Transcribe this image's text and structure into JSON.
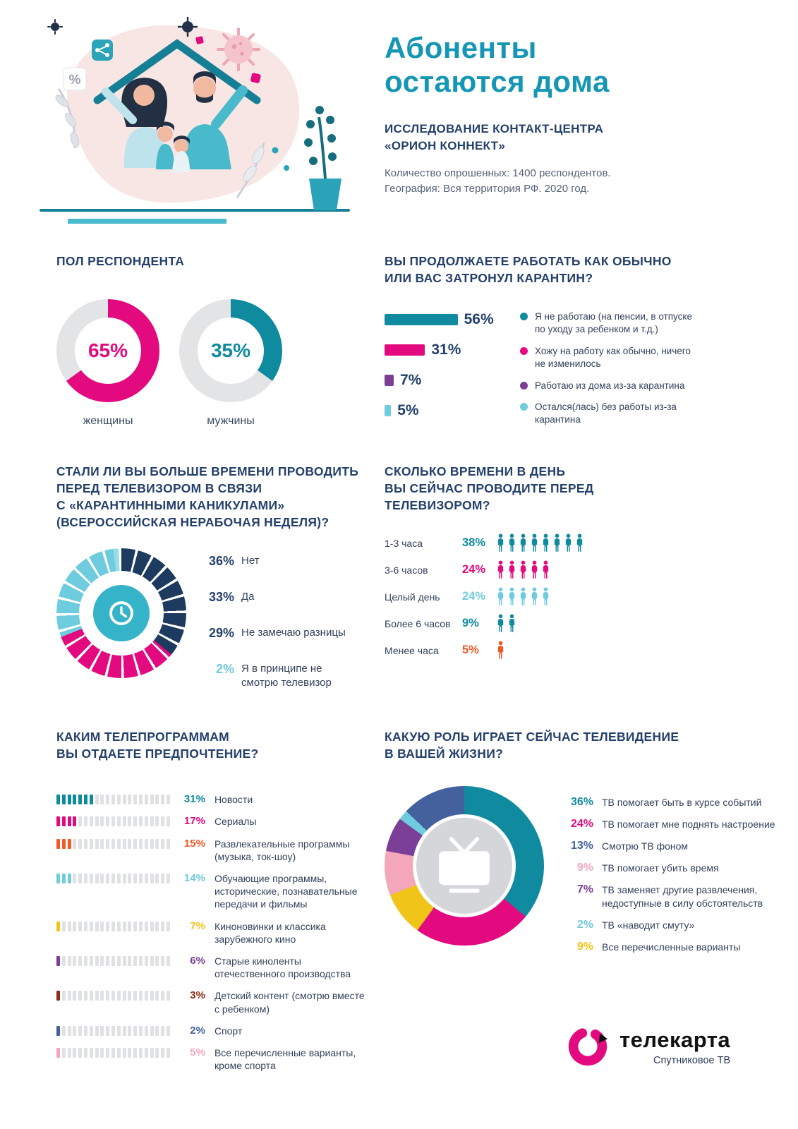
{
  "header": {
    "title_lines": [
      "Абоненты",
      "остаются дома"
    ],
    "subtitle_lines": [
      "ИССЛЕДОВАНИЕ КОНТАКТ-ЦЕНТРА",
      "«ОРИОН КОННЕКТ»"
    ],
    "meta_lines": [
      "Количество опрошенных: 1400  респондентов.",
      "География: Вся территория РФ. 2020 год."
    ]
  },
  "colors": {
    "title_teal": "#1596b4",
    "heading_navy": "#24406b",
    "teal": "#0f8a9e",
    "magenta": "#e20a7e",
    "light_blue": "#6fcbde",
    "purple": "#7b3f98",
    "dark_navy": "#1d3a5f",
    "orange": "#f05a28",
    "yellow": "#f0c419",
    "dark_red": "#8e2c18",
    "slate_blue": "#44619e",
    "light_pink": "#f4a7bb",
    "gray_ring": "#e3e4e6"
  },
  "icons": {
    "clock-icon": "⏰ white clock in teal disc",
    "tv-icon": "📺 white TV in gray disc",
    "person-icon": "🧍 pictogram unit = 5%",
    "family-under-roof-illustration": "family sheltered by roof with virus particles and plant",
    "telekarta-mark": "magenta C-swirl"
  },
  "chart_data": [
    {
      "id": "gender",
      "type": "pie",
      "title": "ПОЛ РЕСПОНДЕНТА",
      "items": [
        {
          "label": "женщины",
          "value": 65,
          "pct": "65%",
          "color": "#e20a7e"
        },
        {
          "label": "мужчины",
          "value": 35,
          "pct": "35%",
          "color": "#0f8a9e"
        }
      ]
    },
    {
      "id": "work_status",
      "type": "bar",
      "title": "ВЫ ПРОДОЛЖАЕТЕ РАБОТАТЬ КАК ОБЫЧНО ИЛИ ВАС ЗАТРОНУЛ КАРАНТИН?",
      "title_lines": [
        "ВЫ ПРОДОЛЖАЕТЕ РАБОТАТЬ КАК ОБЫЧНО",
        "ИЛИ ВАС ЗАТРОНУЛ КАРАНТИН?"
      ],
      "items": [
        {
          "value": 56,
          "pct": "56%",
          "color": "#0f8a9e",
          "label": "Я не работаю (на пенсии, в отпуске по уходу за ребенком и т.д.)"
        },
        {
          "value": 31,
          "pct": "31%",
          "color": "#e20a7e",
          "label": "Хожу на работу как обычно, ничего не изменилось"
        },
        {
          "value": 7,
          "pct": "7%",
          "color": "#7b3f98",
          "label": "Работаю из дома из-за карантина"
        },
        {
          "value": 5,
          "pct": "5%",
          "color": "#6fcbde",
          "label": "Остался(лась) без работы из-за карантина"
        }
      ]
    },
    {
      "id": "tv_more_time",
      "type": "pie",
      "title": "СТАЛИ ЛИ ВЫ БОЛЬШЕ ВРЕМЕНИ ПРОВОДИТЬ ПЕРЕД ТЕЛЕВИЗОРОМ В СВЯЗИ С «КАРАНТИННЫМИ КАНИКУЛАМИ» (ВСЕРОССИЙСКАЯ НЕРАБОЧАЯ НЕДЕЛЯ)?",
      "title_lines": [
        "СТАЛИ ЛИ ВЫ БОЛЬШЕ ВРЕМЕНИ ПРОВОДИТЬ",
        "ПЕРЕД ТЕЛЕВИЗОРОМ В СВЯЗИ",
        "С «КАРАНТИННЫМИ КАНИКУЛАМИ»",
        "(ВСЕРОССИЙСКАЯ НЕРАБОЧАЯ НЕДЕЛЯ)?"
      ],
      "items": [
        {
          "value": 36,
          "pct": "36%",
          "color": "#1d3a5f",
          "pct_color": "#24406b",
          "label": "Нет"
        },
        {
          "value": 33,
          "pct": "33%",
          "color": "#e20a7e",
          "pct_color": "#24406b",
          "label": "Да"
        },
        {
          "value": 29,
          "pct": "29%",
          "color": "#6fcbde",
          "pct_color": "#24406b",
          "label": "Не замечаю разницы"
        },
        {
          "value": 2,
          "pct": "2%",
          "color": "#9adde9",
          "pct_color": "#6fcbde",
          "label": "Я в принципе не смотрю телевизор"
        }
      ]
    },
    {
      "id": "time_per_day",
      "type": "bar",
      "title": "СКОЛЬКО ВРЕМЕНИ В ДЕНЬ ВЫ СЕЙЧАС ПРОВОДИТЕ ПЕРЕД ТЕЛЕВИЗОРОМ?",
      "title_lines": [
        "СКОЛЬКО ВРЕМЕНИ В ДЕНЬ",
        "ВЫ СЕЙЧАС ПРОВОДИТЕ ПЕРЕД",
        "ТЕЛЕВИЗОРОМ?"
      ],
      "items": [
        {
          "label": "1-3 часа",
          "value": 38,
          "pct": "38%",
          "color": "#0f8a9e",
          "icons": 8
        },
        {
          "label": "3-6 часов",
          "value": 24,
          "pct": "24%",
          "color": "#e20a7e",
          "icons": 5
        },
        {
          "label": "Целый день",
          "value": 24,
          "pct": "24%",
          "color": "#6fcbde",
          "icons": 5
        },
        {
          "label": "Более 6 часов",
          "value": 9,
          "pct": "9%",
          "color": "#0f8a9e",
          "icons": 2
        },
        {
          "label": "Менее часа",
          "value": 5,
          "pct": "5%",
          "color": "#f05a28",
          "icons": 1
        }
      ]
    },
    {
      "id": "tv_programs",
      "type": "bar",
      "title": "КАКИМ ТЕЛЕПРОГРАММАМ ВЫ ОТДАЕТЕ ПРЕДПОЧТЕНИЕ?",
      "title_lines": [
        "КАКИМ ТЕЛЕПРОГРАММАМ",
        "ВЫ ОТДАЕТЕ ПРЕДПОЧТЕНИЕ?"
      ],
      "items": [
        {
          "value": 31,
          "pct": "31%",
          "color": "#0f8a9e",
          "label": "Новости"
        },
        {
          "value": 17,
          "pct": "17%",
          "color": "#e20a7e",
          "label": "Сериалы"
        },
        {
          "value": 15,
          "pct": "15%",
          "color": "#f05a28",
          "label": "Развлекательные программы (музыка, ток-шоу)"
        },
        {
          "value": 14,
          "pct": "14%",
          "color": "#6fcbde",
          "label": "Обучающие программы, исторические, познавательные передачи и фильмы"
        },
        {
          "value": 7,
          "pct": "7%",
          "color": "#f0c419",
          "label": "Киноновинки и классика зарубежного кино"
        },
        {
          "value": 6,
          "pct": "6%",
          "color": "#7b3f98",
          "label": "Старые киноленты отечественного производства"
        },
        {
          "value": 3,
          "pct": "3%",
          "color": "#8e2c18",
          "label": "Детский контент (смотрю вместе с ребенком)"
        },
        {
          "value": 2,
          "pct": "2%",
          "color": "#44619e",
          "label": "Спорт"
        },
        {
          "value": 5,
          "pct": "5%",
          "color": "#f4a7bb",
          "label": "Все перечисленные варианты, кроме спорта"
        }
      ]
    },
    {
      "id": "tv_role",
      "type": "pie",
      "title": "КАКУЮ РОЛЬ ИГРАЕТ СЕЙЧАС ТЕЛЕВИДЕНИЕ В ВАШЕЙ ЖИЗНИ?",
      "title_lines": [
        "КАКУЮ РОЛЬ ИГРАЕТ СЕЙЧАС ТЕЛЕВИДЕНИЕ",
        "В ВАШЕЙ ЖИЗНИ?"
      ],
      "items": [
        {
          "value": 36,
          "pct": "36%",
          "color": "#0f8a9e",
          "label": "ТВ помогает быть в курсе событий"
        },
        {
          "value": 24,
          "pct": "24%",
          "color": "#e20a7e",
          "label": "ТВ помогает мне  поднять настроение"
        },
        {
          "value": 13,
          "pct": "13%",
          "color": "#44619e",
          "label": "Смотрю ТВ фоном"
        },
        {
          "value": 9,
          "pct": "9%",
          "color": "#f4a7bb",
          "label": "ТВ помогает убить время"
        },
        {
          "value": 7,
          "pct": "7%",
          "color": "#7b3f98",
          "label": "ТВ заменяет другие развлечения, недоступные в силу обстоятельств"
        },
        {
          "value": 2,
          "pct": "2%",
          "color": "#6fcbde",
          "label": "ТВ «наводит смуту»"
        },
        {
          "value": 9,
          "pct": "9%",
          "color": "#f0c419",
          "label": "Все перечисленные варианты"
        }
      ]
    }
  ],
  "logo": {
    "name": "телекарта",
    "tagline": "Спутниковое ТВ"
  }
}
